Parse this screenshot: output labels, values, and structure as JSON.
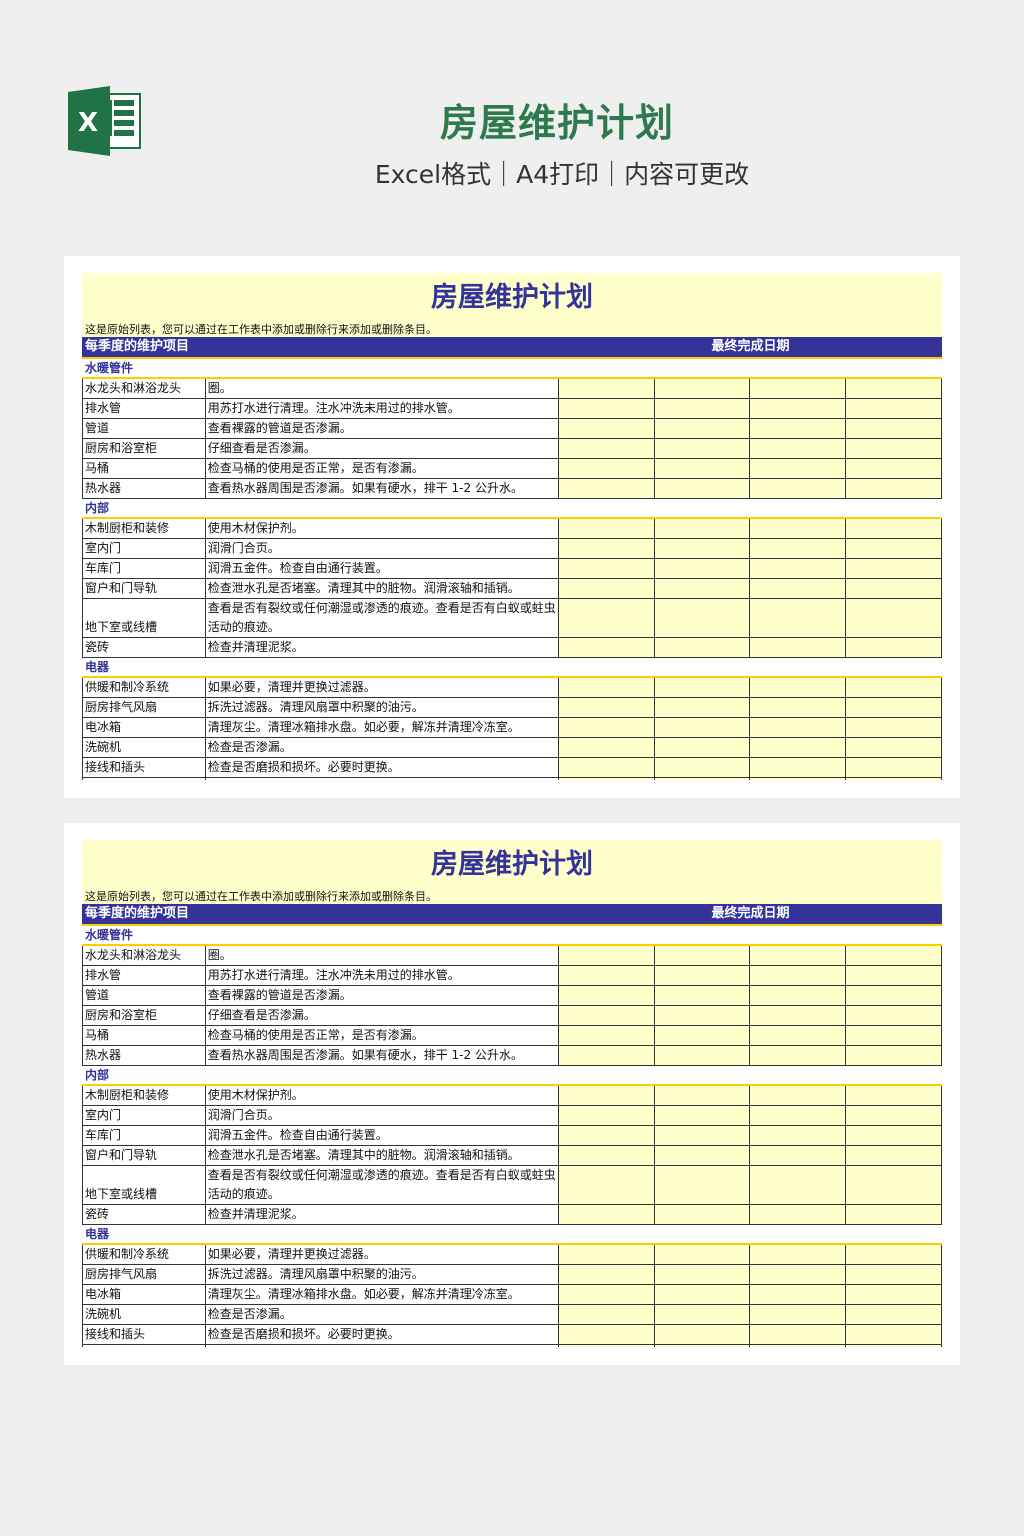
{
  "header": {
    "title": "房屋维护计划",
    "subtitle": "Excel格式｜A4打印｜内容可更改",
    "logo_icon": "excel-icon",
    "accent": "#2e7a4e"
  },
  "sheet": {
    "title": "房屋维护计划",
    "note": "这是原始列表，您可以通过在工作表中添加或删除行来添加或删除条目。",
    "col_item": "每季度的维护项目",
    "col_date": "最终完成日期",
    "colors": {
      "header_bg": "#333399",
      "fill": "#ffffcc",
      "rule": "#ffcc00"
    },
    "sections": [
      {
        "name": "水暖管件",
        "rows": [
          {
            "item": "水龙头和淋浴龙头",
            "desc": "圈。"
          },
          {
            "item": "排水管",
            "desc": "用苏打水进行清理。注水冲洗未用过的排水管。"
          },
          {
            "item": "管道",
            "desc": "查看裸露的管道是否渗漏。"
          },
          {
            "item": "厨房和浴室柜",
            "desc": "仔细查看是否渗漏。"
          },
          {
            "item": "马桶",
            "desc": "检查马桶的使用是否正常，是否有渗漏。"
          },
          {
            "item": "热水器",
            "desc": "查看热水器周围是否渗漏。如果有硬水，排干 1-2 公升水。"
          }
        ]
      },
      {
        "name": "内部",
        "rows": [
          {
            "item": "木制厨柜和装修",
            "desc": "使用木材保护剂。"
          },
          {
            "item": "室内门",
            "desc": "润滑门合页。"
          },
          {
            "item": "车库门",
            "desc": "润滑五金件。检查自由通行装置。"
          },
          {
            "item": "窗户和门导轨",
            "desc": "检查泄水孔是否堵塞。清理其中的脏物。润滑滚轴和插销。"
          },
          {
            "item": "地下室或线槽",
            "desc": "查看是否有裂纹或任何潮湿或渗透的痕迹。查看是否有白蚁或蛀虫活动的痕迹。",
            "tall": true
          },
          {
            "item": "瓷砖",
            "desc": "检查并清理泥浆。"
          }
        ]
      },
      {
        "name": "电器",
        "rows": [
          {
            "item": "供暖和制冷系统",
            "desc": "如果必要，清理并更换过滤器。"
          },
          {
            "item": "厨房排气风扇",
            "desc": "拆洗过滤器。清理风扇罩中积聚的油污。"
          },
          {
            "item": "电冰箱",
            "desc": "清理灰尘。清理冰箱排水盘。如必要，解冻并清理冷冻室。"
          },
          {
            "item": "洗碗机",
            "desc": "检查是否渗漏。"
          },
          {
            "item": "接线和插头",
            "desc": "检查是否磨损和损坏。必要时更换。"
          }
        ]
      }
    ]
  }
}
